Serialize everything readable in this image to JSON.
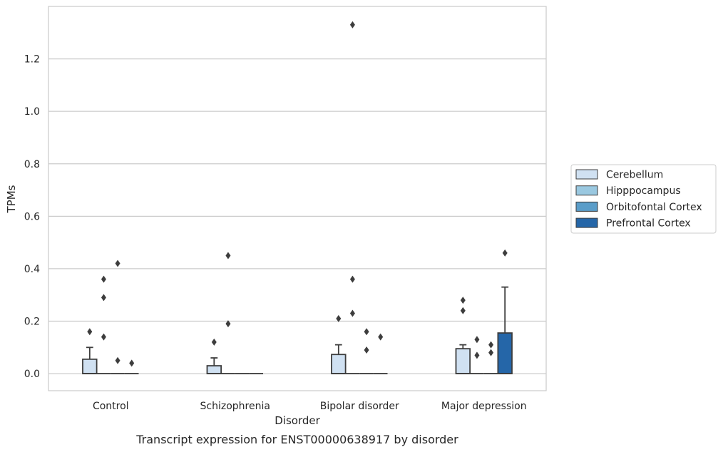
{
  "chart_data": {
    "type": "box",
    "title": "",
    "caption": "Transcript expression for ENST00000638917 by disorder",
    "xlabel": "Disorder",
    "ylabel": "TPMs",
    "ylim": [
      -0.065,
      1.4
    ],
    "yticks": [
      0.0,
      0.2,
      0.4,
      0.6,
      0.8,
      1.0,
      1.2
    ],
    "ytick_labels": [
      "0.0",
      "0.2",
      "0.4",
      "0.6",
      "0.8",
      "1.0",
      "1.2"
    ],
    "grid": "horizontal",
    "legend_position": "center-right",
    "categories": [
      "Control",
      "Schizophrenia",
      "Bipolar disorder",
      "Major depression"
    ],
    "series": [
      {
        "name": "Cerebellum",
        "color": "#d0e1f2",
        "boxes": [
          {
            "q1": 0.0,
            "median": 0.0,
            "q3": 0.055,
            "whisker_low": 0.0,
            "whisker_high": 0.1,
            "outliers": [
              0.16
            ]
          },
          {
            "q1": 0.0,
            "median": 0.0,
            "q3": 0.03,
            "whisker_low": 0.0,
            "whisker_high": 0.06,
            "outliers": [
              0.12
            ]
          },
          {
            "q1": 0.0,
            "median": 0.0,
            "q3": 0.073,
            "whisker_low": 0.0,
            "whisker_high": 0.11,
            "outliers": [
              0.21
            ]
          },
          {
            "q1": 0.0,
            "median": 0.0,
            "q3": 0.095,
            "whisker_low": 0.0,
            "whisker_high": 0.11,
            "outliers": [
              0.24,
              0.28
            ]
          }
        ]
      },
      {
        "name": "Hipppocampus",
        "color": "#9ac8e0",
        "boxes": [
          {
            "q1": 0.0,
            "median": 0.0,
            "q3": 0.0,
            "whisker_low": 0.0,
            "whisker_high": 0.0,
            "outliers": [
              0.14,
              0.29,
              0.36
            ]
          },
          {
            "q1": 0.0,
            "median": 0.0,
            "q3": 0.0,
            "whisker_low": 0.0,
            "whisker_high": 0.0,
            "outliers": [
              0.19,
              0.45
            ]
          },
          {
            "q1": 0.0,
            "median": 0.0,
            "q3": 0.0,
            "whisker_low": 0.0,
            "whisker_high": 0.0,
            "outliers": [
              0.23,
              0.36,
              1.33
            ]
          },
          {
            "q1": 0.0,
            "median": 0.0,
            "q3": 0.0,
            "whisker_low": 0.0,
            "whisker_high": 0.0,
            "outliers": [
              0.07,
              0.13
            ]
          }
        ]
      },
      {
        "name": "Orbitofontal Cortex",
        "color": "#5a9dc9",
        "boxes": [
          {
            "q1": 0.0,
            "median": 0.0,
            "q3": 0.0,
            "whisker_low": 0.0,
            "whisker_high": 0.0,
            "outliers": [
              0.05,
              0.42
            ]
          },
          {
            "q1": 0.0,
            "median": 0.0,
            "q3": 0.0,
            "whisker_low": 0.0,
            "whisker_high": 0.0,
            "outliers": []
          },
          {
            "q1": 0.0,
            "median": 0.0,
            "q3": 0.0,
            "whisker_low": 0.0,
            "whisker_high": 0.0,
            "outliers": [
              0.09,
              0.16
            ]
          },
          {
            "q1": 0.0,
            "median": 0.0,
            "q3": 0.0,
            "whisker_low": 0.0,
            "whisker_high": 0.0,
            "outliers": [
              0.08,
              0.11
            ]
          }
        ]
      },
      {
        "name": "Prefrontal Cortex",
        "color": "#2566a8",
        "boxes": [
          {
            "q1": 0.0,
            "median": 0.0,
            "q3": 0.0,
            "whisker_low": 0.0,
            "whisker_high": 0.0,
            "outliers": [
              0.04
            ]
          },
          {
            "q1": 0.0,
            "median": 0.0,
            "q3": 0.0,
            "whisker_low": 0.0,
            "whisker_high": 0.0,
            "outliers": []
          },
          {
            "q1": 0.0,
            "median": 0.0,
            "q3": 0.0,
            "whisker_low": 0.0,
            "whisker_high": 0.0,
            "outliers": [
              0.14
            ]
          },
          {
            "q1": 0.0,
            "median": 0.0,
            "q3": 0.155,
            "whisker_low": 0.0,
            "whisker_high": 0.33,
            "outliers": [
              0.46
            ]
          }
        ]
      }
    ]
  }
}
